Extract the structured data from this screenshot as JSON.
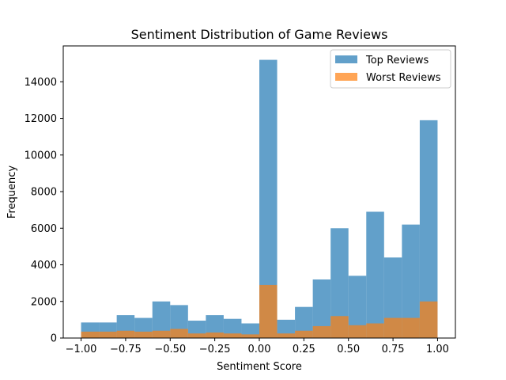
{
  "chart_data": {
    "type": "bar",
    "title": "Sentiment Distribution of Game Reviews",
    "xlabel": "Sentiment Score",
    "ylabel": "Frequency",
    "xlim": [
      -1.1,
      1.1
    ],
    "ylim": [
      0,
      15960
    ],
    "xticks": [
      -1.0,
      -0.75,
      -0.5,
      -0.25,
      0.0,
      0.25,
      0.5,
      0.75,
      1.0
    ],
    "xtick_labels": [
      "−1.00",
      "−0.75",
      "−0.50",
      "−0.25",
      "0.00",
      "0.25",
      "0.50",
      "0.75",
      "1.00"
    ],
    "yticks": [
      0,
      2000,
      4000,
      6000,
      8000,
      10000,
      12000,
      14000
    ],
    "ytick_labels": [
      "0",
      "2000",
      "4000",
      "6000",
      "8000",
      "10000",
      "12000",
      "14000"
    ],
    "bin_edges": [
      -1.0,
      -0.9,
      -0.8,
      -0.7,
      -0.6,
      -0.5,
      -0.4,
      -0.3,
      -0.2,
      -0.1,
      0.0,
      0.1,
      0.2,
      0.3,
      0.4,
      0.5,
      0.6,
      0.7,
      0.8,
      0.9,
      1.0
    ],
    "series": [
      {
        "name": "Top Reviews",
        "color": "#1f77b4",
        "opacity": 0.7,
        "values": [
          850,
          850,
          1250,
          1100,
          2000,
          1800,
          950,
          1250,
          1050,
          800,
          15200,
          1000,
          1700,
          3200,
          6000,
          3400,
          6900,
          4400,
          6200,
          11900
        ]
      },
      {
        "name": "Worst Reviews",
        "color": "#ff7f0e",
        "opacity": 0.7,
        "values": [
          350,
          350,
          400,
          350,
          400,
          500,
          250,
          300,
          250,
          200,
          2900,
          250,
          400,
          650,
          1200,
          700,
          800,
          1100,
          1100,
          2000
        ]
      }
    ],
    "grid": false,
    "legend_position": "top-right"
  }
}
